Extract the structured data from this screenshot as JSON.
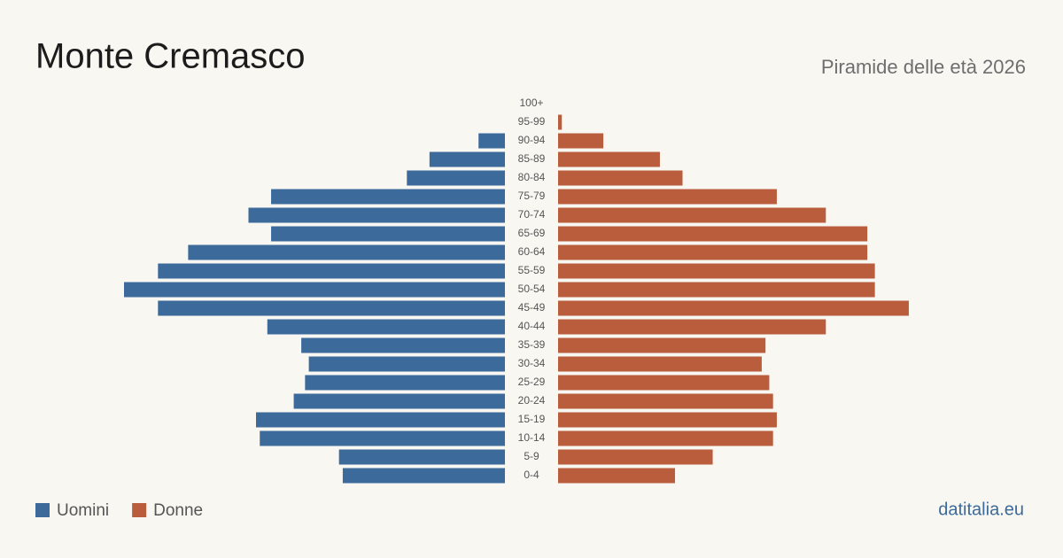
{
  "chart_data": {
    "type": "pyramid",
    "title": "Monte Cremasco",
    "subtitle": "Piramide delle età 2026",
    "categories": [
      "100+",
      "95-99",
      "90-94",
      "85-89",
      "80-84",
      "75-79",
      "70-74",
      "65-69",
      "60-64",
      "55-59",
      "50-54",
      "45-49",
      "40-44",
      "35-39",
      "30-34",
      "25-29",
      "20-24",
      "15-19",
      "10-14",
      "5-9",
      "0-4"
    ],
    "series": [
      {
        "name": "Uomini",
        "color": "#3b6a9b",
        "values": [
          0,
          0,
          7,
          20,
          26,
          62,
          68,
          62,
          84,
          92,
          101,
          92,
          63,
          54,
          52,
          53,
          56,
          66,
          65,
          44,
          43
        ]
      },
      {
        "name": "Donne",
        "color": "#b95d3d",
        "values": [
          0,
          1,
          12,
          27,
          33,
          58,
          71,
          82,
          82,
          84,
          84,
          93,
          71,
          55,
          54,
          56,
          57,
          58,
          57,
          41,
          31
        ]
      }
    ],
    "source": "datitalia.eu"
  }
}
